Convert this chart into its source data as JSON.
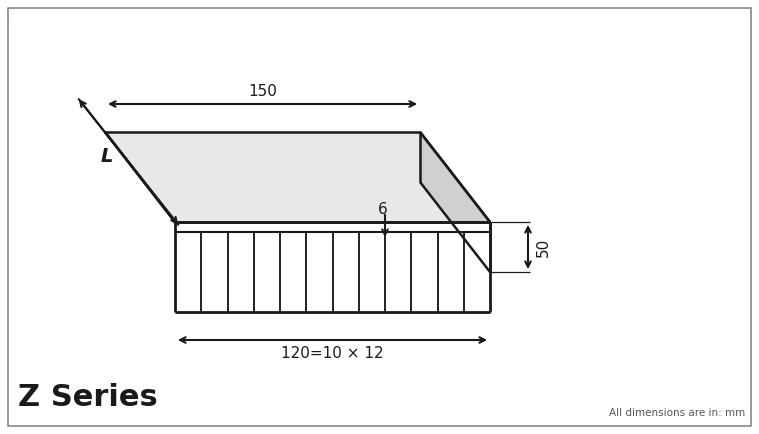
{
  "bg_color": "#ffffff",
  "line_color": "#1a1a1a",
  "title": "Z Series",
  "subtitle": "All dimensions are in: mm",
  "dim_150": "150",
  "dim_50": "50",
  "dim_6": "6",
  "dim_120": "120=10 × 12",
  "dim_L": "L",
  "num_fins": 13,
  "border_color": "#888888",
  "fill_top": "#e8e8e8",
  "fill_right": "#d0d0d0",
  "fill_front": "#f0f0f0"
}
